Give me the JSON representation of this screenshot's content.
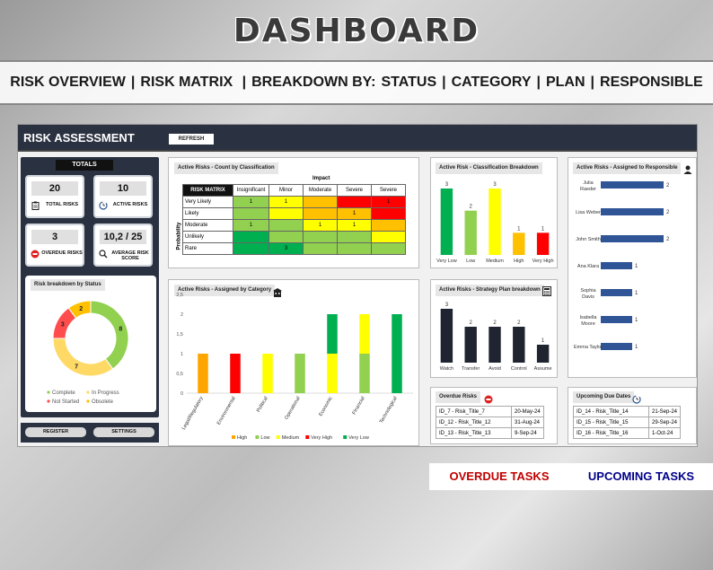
{
  "header": {
    "title": "DASHBOARD"
  },
  "nav": [
    {
      "label": "RISK OVERVIEW"
    },
    {
      "label": "RISK MATRIX"
    },
    {
      "label": "BREAKDOWN BY:"
    },
    {
      "label": "STATUS"
    },
    {
      "label": "CATEGORY"
    },
    {
      "label": "PLAN"
    },
    {
      "label": "RESPONSIBLE"
    }
  ],
  "panel": {
    "title": "RISK ASSESSMENT",
    "refresh_label": "REFRESH"
  },
  "totals": {
    "label": "TOTALS",
    "total_risks": {
      "value": "20",
      "label": "TOTAL RISKS",
      "icon": "clipboard-icon"
    },
    "active_risks": {
      "value": "10",
      "label": "ACTIVE RISKS",
      "icon": "clock-icon"
    },
    "overdue_risks": {
      "value": "3",
      "label": "OVERDUE RISKS",
      "icon": "alert-icon"
    },
    "avg_score": {
      "value": "10,2 / 25",
      "label": "AVERAGE RISK SCORE",
      "icon": "magnifier-icon"
    }
  },
  "status_chart": {
    "title": "Risk breakdown by Status",
    "type": "pie",
    "slices": [
      {
        "name": "Complete",
        "value": 8,
        "color": "#92d050"
      },
      {
        "name": "In Progress",
        "value": 7,
        "color": "#ffd966"
      },
      {
        "name": "Not Started",
        "value": 3,
        "color": "#ff4d4d"
      },
      {
        "name": "Obsolete",
        "value": 2,
        "color": "#ffc000"
      }
    ]
  },
  "buttons": {
    "register": "REGISTER",
    "settings": "SETTINGS"
  },
  "matrix": {
    "title": "Active Risks - Count by Classification",
    "corner": "RISK MATRIX",
    "impact_label": "Impact",
    "probability_label": "Probability",
    "columns": [
      "Insignificant",
      "Minor",
      "Moderate",
      "Severe",
      "Severe"
    ],
    "rows": [
      {
        "label": "Very Likely",
        "cells": [
          "1",
          "1",
          "",
          "",
          "1"
        ],
        "colors": [
          "#92d050",
          "#ffff00",
          "#ffc000",
          "#ff0000",
          "#ff0000"
        ]
      },
      {
        "label": "Likely",
        "cells": [
          "",
          "",
          "",
          "1",
          ""
        ],
        "colors": [
          "#92d050",
          "#ffff00",
          "#ffc000",
          "#ffc000",
          "#ff0000"
        ]
      },
      {
        "label": "Moderate",
        "cells": [
          "1",
          "",
          "1",
          "1",
          ""
        ],
        "colors": [
          "#92d050",
          "#92d050",
          "#ffff00",
          "#ffff00",
          "#ffc000"
        ]
      },
      {
        "label": "Unlikely",
        "cells": [
          "",
          "",
          "",
          "",
          ""
        ],
        "colors": [
          "#00b050",
          "#92d050",
          "#92d050",
          "#92d050",
          "#ffff00"
        ]
      },
      {
        "label": "Rare",
        "cells": [
          "",
          "3",
          "",
          "",
          ""
        ],
        "colors": [
          "#00b050",
          "#00b050",
          "#92d050",
          "#92d050",
          "#92d050"
        ]
      }
    ]
  },
  "classification_chart": {
    "title": "Active Risk - Classification Breakdown",
    "type": "bar",
    "categories": [
      "Very Low",
      "Low",
      "Medium",
      "High",
      "Very High"
    ],
    "values": [
      3,
      2,
      3,
      1,
      1
    ],
    "colors": [
      "#00b050",
      "#92d050",
      "#ffff00",
      "#ffc000",
      "#ff0000"
    ]
  },
  "responsible_chart": {
    "title": "Active Risks - Assigned to Responsible",
    "type": "bar",
    "categories": [
      "Julia Raeder",
      "Lisa Weber",
      "John Smith",
      "Ana Klara",
      "Sophia Davis",
      "Isabella Moore",
      "Emma Taylor"
    ],
    "values": [
      2,
      2,
      2,
      1,
      1,
      1,
      1
    ],
    "color": "#2f5597"
  },
  "category_chart": {
    "title": "Active Risks - Assigned by Category",
    "type": "bar",
    "ylim": [
      0,
      2.5
    ],
    "yticks": [
      "0",
      "0,5",
      "1",
      "1,5",
      "2",
      "2,5"
    ],
    "categories": [
      "Legal/Regulatory",
      "Environmental",
      "Political",
      "Operational",
      "Economic",
      "Financial",
      "Technological"
    ],
    "series": [
      {
        "name": "High",
        "color": "#ffa500",
        "values": [
          1,
          0,
          0,
          0,
          0,
          0,
          0
        ]
      },
      {
        "name": "Low",
        "color": "#92d050",
        "values": [
          0,
          0,
          0,
          1,
          0,
          1,
          0
        ]
      },
      {
        "name": "Medium",
        "color": "#ffff00",
        "values": [
          0,
          0,
          1,
          0,
          1,
          1,
          0
        ]
      },
      {
        "name": "Very High",
        "color": "#ff0000",
        "values": [
          0,
          1,
          0,
          0,
          0,
          0,
          0
        ]
      },
      {
        "name": "Very Low",
        "color": "#00b050",
        "values": [
          0,
          0,
          0,
          0,
          1,
          0,
          2
        ]
      }
    ]
  },
  "plan_chart": {
    "title": "Active Risks - Strategy Plan breakdown",
    "type": "bar",
    "categories": [
      "Watch",
      "Transfer",
      "Avoid",
      "Control",
      "Assume"
    ],
    "values": [
      3,
      2,
      2,
      2,
      1
    ],
    "color": "#1f2430"
  },
  "overdue": {
    "title": "Overdue Risks",
    "rows": [
      {
        "id": "ID_7 - Risk_Title_7",
        "date": "20-May-24"
      },
      {
        "id": "ID_12 - Risk_Title_12",
        "date": "31-Aug-24"
      },
      {
        "id": "ID_13 - Risk_Title_13",
        "date": "9-Sep-24"
      }
    ]
  },
  "upcoming": {
    "title": "Upcoming Due Dates",
    "rows": [
      {
        "id": "ID_14 - Risk_Title_14",
        "date": "21-Sep-24"
      },
      {
        "id": "ID_15 - Risk_Title_15",
        "date": "29-Sep-24"
      },
      {
        "id": "ID_16 - Risk_Title_16",
        "date": "1-Oct-24"
      }
    ]
  },
  "tasks": {
    "overdue_label": "OVERDUE TASKS",
    "upcoming_label": "UPCOMING TASKS",
    "overdue_color": "#c00000",
    "upcoming_color": "#00008b"
  }
}
